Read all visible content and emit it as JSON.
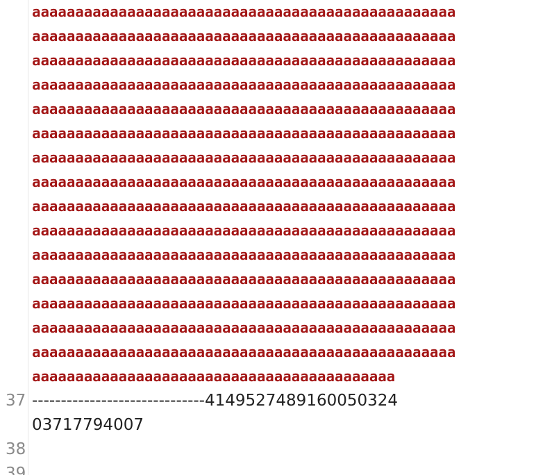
{
  "editor": {
    "string_rows": [
      "aaaaaaaaaaaaaaaaaaaaaaaaaaaaaaaaaaaaaaaaaaaaaaaaaaaaaaaaaaaaaaaaaaaaaaaaaaaaaaaaaaaaaaaaaaaaaaaaaaaa",
      "aaaaaaaaaaaaaaaaaaaaaaaaaaaaaaaaaaaaaaaaaaaaaaaaaaaaaaaaaaaaaaaaaaaaaaaaaaaaaaaaaaaaaaaaaaaaaaaaaaaa",
      "aaaaaaaaaaaaaaaaaaaaaaaaaaaaaaaaaaaaaaaaaaaaaaaaaaaaaaaaaaaaaaaaaaaaaaaaaaaaaaaaaaaaaaaaaaaaaaaaaaaa",
      "aaaaaaaaaaaaaaaaaaaaaaaaaaaaaaaaaaaaaaaaaaaaaaaaaaaaaaaaaaaaaaaaaaaaaaaaaaaaaaaaaaaaaaaaaaaaaaaaaaaa",
      "aaaaaaaaaaaaaaaaaaaaaaaaaaaaaaaaaaaaaaaaaaaaaaaaaaaaaaaaaaaaaaaaaaaaaaaaaaaaaaaaaaaaaaaaaaaaaaaaaaaa",
      "aaaaaaaaaaaaaaaaaaaaaaaaaaaaaaaaaaaaaaaaaaaaaaaaaaaaaaaaaaaaaaaaaaaaaaaaaaaaaaaaaaaaaaaaaaaaaaaaaaaa",
      "aaaaaaaaaaaaaaaaaaaaaaaaaaaaaaaaaaaaaaaaaaaaaaaaaaaaaaaaaaaaaaaaaaaaaaaaaaaaaaaaaaaaaaaaaaaaaaaaaaaa",
      "aaaaaaaaaaaaaaaaaaaaaaaaaaaaaaaaaaaaaaaaaaaaaaaaaaaaaaaaaaaaaaaaaaaaaaaaaaaaaaaaaaaaaaaaaaaaaaaaaaaa",
      "aaaaaaaaaaaaaaaaaaaaaaaaaaaaaaaaaaaaaaaaaaaaaaaaaaaaaaaaaaaaaaaaaaaaaaaaaaaaaaaaaaaaaaaaaaaaaaaaaaaa",
      "aaaaaaaaaaaaaaaaaaaaaaaaaaaaaaaaaaaaaaaaaaaaaaaaaaaaaaaaaaaaaaaaaaaaaaaaaaaaaaaaaaaaaaaaaaaaaaaaaaaa",
      "aaaaaaaaaaaaaaaaaaaaaaaaaaaaaaaaaaaaaaaaaaaaaaaaaaaaaaaaaaaaaaaaaaaaaaaaaaaaaaaaaaaaaaaaaaaaaaaaaaaa",
      "aaaaaaaaaaaaaaaaaaaaaaaaaaaaaaaaaaaaaaaaaaaaaaaaaaaaaaaaaaaaaaaaaaaaaaaaaaaaaaaaaaaaaaaaaaaaaaaaaaaa",
      "aaaaaaaaaaaaaaaaaaaaaaaaaaaaaaaaaaaaaaaaaaaaaaaaaaaaaaaaaaaaaaaaaaaaaaaaaaaaaaaaaaaaaaaaaaaaaaaaaaaa",
      "aaaaaaaaaaaaaaaaaaaaaaaaaaaaaaaaaaaaaaaaaaaaaaaaaaaaaaaaaaaaaaaaaaaaaaaaaaaaaaaaaaaaaaaaaaaaaaaaaaaa",
      "aaaaaaaaaaaaaaaaaaaaaaaaaaaaaaaaaaaaaaaaaaaaaaaaaaaaaaaaaaaaaaaaaaaaaaaaaaaaaaaaaaaaaaaaaaaaaaaaaaaa",
      "aaaaaaaaaaaaaaaaaaaaaaaaaaaaaaaaaaaaaaaaaaaaaaaaaaaaaaaaaaaaaaaaaaaaaaaaaaaaaaaaaaaaaaaaaaaaaaaaaaaa"
    ],
    "string_rows_trimmed": [
      "aaaaaaaaaaaaaaaaaaaaaaaaaaaaaaaaaaaaaaaaaaaaaaaaa",
      "aaaaaaaaaaaaaaaaaaaaaaaaaaaaaaaaaaaaaaaaaaaaaaaaa",
      "aaaaaaaaaaaaaaaaaaaaaaaaaaaaaaaaaaaaaaaaaaaaaaaaa",
      "aaaaaaaaaaaaaaaaaaaaaaaaaaaaaaaaaaaaaaaaaaaaaaaaa",
      "aaaaaaaaaaaaaaaaaaaaaaaaaaaaaaaaaaaaaaaaaaaaaaaaa",
      "aaaaaaaaaaaaaaaaaaaaaaaaaaaaaaaaaaaaaaaaaaaaaaaaa",
      "aaaaaaaaaaaaaaaaaaaaaaaaaaaaaaaaaaaaaaaaaaaaaaaaa",
      "aaaaaaaaaaaaaaaaaaaaaaaaaaaaaaaaaaaaaaaaaaaaaaaaa",
      "aaaaaaaaaaaaaaaaaaaaaaaaaaaaaaaaaaaaaaaaaaaaaaaaa",
      "aaaaaaaaaaaaaaaaaaaaaaaaaaaaaaaaaaaaaaaaaaaaaaaaa",
      "aaaaaaaaaaaaaaaaaaaaaaaaaaaaaaaaaaaaaaaaaaaaaaaaa",
      "aaaaaaaaaaaaaaaaaaaaaaaaaaaaaaaaaaaaaaaaaaaaaaaaa",
      "aaaaaaaaaaaaaaaaaaaaaaaaaaaaaaaaaaaaaaaaaaaaaaaaa",
      "aaaaaaaaaaaaaaaaaaaaaaaaaaaaaaaaaaaaaaaaaaaaaaaaa",
      "aaaaaaaaaaaaaaaaaaaaaaaaaaaaaaaaaaaaaaaaaaaaaaaaa"
    ],
    "last_string_row": "aaaaaaaaaaaaaaaaaaaaaaaaaaaaaaaaaaaaaaaaaa",
    "line_37_number": "37",
    "line_37_text": "------------------------------4149527489160050324",
    "line_37_wrap": "03717794007",
    "line_38_number": "38",
    "line_39_number": "39",
    "colors": {
      "string": "#a31515",
      "text": "#222222",
      "line_number": "#8a8a8a"
    }
  }
}
